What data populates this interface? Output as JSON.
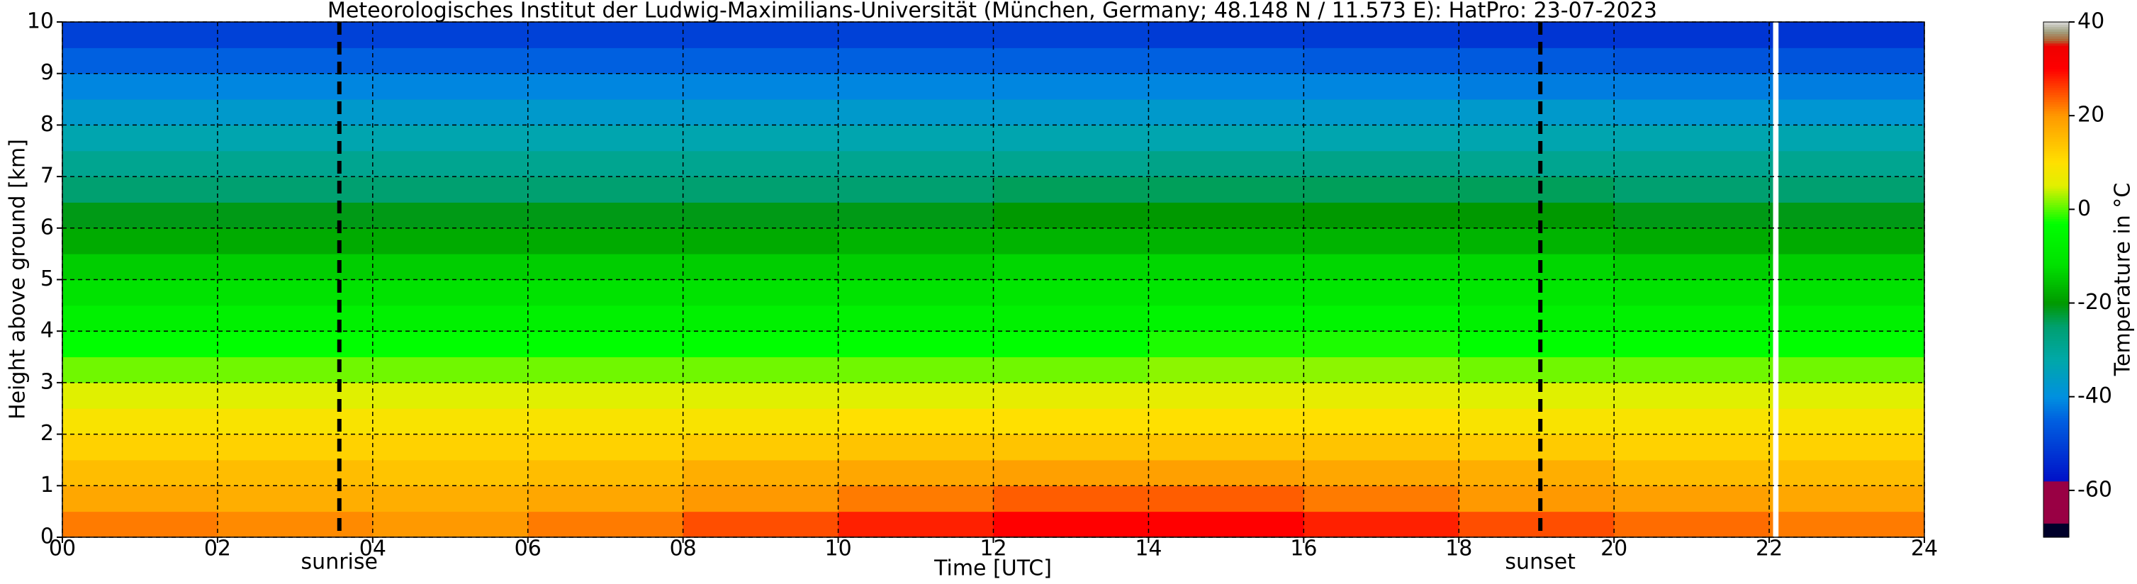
{
  "chart_data": {
    "type": "heatmap",
    "title": "Meteorologisches Institut der Ludwig-Maximilians-Universität (München, Germany; 48.148 N / 11.573 E):    HatPro: 23-07-2023",
    "x_label": "Time [UTC]",
    "y_label": "Height above ground [km]",
    "colorbar_label": "Temperature in °C",
    "x_bins": [
      0,
      2,
      4,
      6,
      8,
      10,
      12,
      14,
      16,
      18,
      20,
      22,
      24
    ],
    "y_bins": [
      0,
      0.5,
      1,
      1.5,
      2,
      2.5,
      3,
      3.5,
      4,
      4.5,
      5,
      5.5,
      6,
      6.5,
      7,
      7.5,
      8,
      8.5,
      9,
      9.5,
      10
    ],
    "z": [
      [
        22,
        21,
        20,
        22,
        25,
        28,
        30,
        30,
        28,
        25,
        23,
        22
      ],
      [
        18,
        17,
        17,
        18,
        20,
        22,
        24,
        24,
        22,
        20,
        19,
        18
      ],
      [
        15,
        15,
        14,
        15,
        17,
        18,
        19,
        19,
        18,
        17,
        15,
        15
      ],
      [
        12,
        12,
        12,
        12,
        13,
        14,
        14,
        14,
        14,
        13,
        12,
        12
      ],
      [
        9,
        9,
        9,
        9,
        9,
        10,
        10,
        10,
        10,
        9,
        9,
        9
      ],
      [
        5,
        5,
        5,
        5,
        5,
        5,
        6,
        6,
        6,
        5,
        5,
        5
      ],
      [
        1,
        1,
        1,
        1,
        1,
        1,
        1,
        2,
        2,
        1,
        1,
        1
      ],
      [
        -3,
        -3,
        -3,
        -3,
        -3,
        -3,
        -3,
        -2,
        -2,
        -3,
        -3,
        -3
      ],
      [
        -7,
        -7,
        -7,
        -7,
        -7,
        -7,
        -7,
        -6,
        -6,
        -7,
        -7,
        -7
      ],
      [
        -11,
        -11,
        -11,
        -11,
        -11,
        -11,
        -10,
        -10,
        -10,
        -10,
        -11,
        -11
      ],
      [
        -14,
        -14,
        -14,
        -14,
        -14,
        -14,
        -13,
        -13,
        -13,
        -13,
        -14,
        -14
      ],
      [
        -18,
        -18,
        -18,
        -18,
        -18,
        -17,
        -17,
        -17,
        -17,
        -17,
        -18,
        -18
      ],
      [
        -21,
        -21,
        -21,
        -21,
        -21,
        -21,
        -20,
        -20,
        -20,
        -20,
        -21,
        -21
      ],
      [
        -25,
        -25,
        -25,
        -25,
        -25,
        -25,
        -24,
        -24,
        -24,
        -24,
        -25,
        -25
      ],
      [
        -29,
        -29,
        -29,
        -29,
        -29,
        -29,
        -29,
        -28,
        -28,
        -29,
        -29,
        -29
      ],
      [
        -33,
        -33,
        -33,
        -33,
        -33,
        -33,
        -33,
        -33,
        -33,
        -33,
        -33,
        -33
      ],
      [
        -37,
        -37,
        -37,
        -37,
        -37,
        -37,
        -37,
        -37,
        -37,
        -37,
        -38,
        -38
      ],
      [
        -41,
        -41,
        -41,
        -41,
        -41,
        -41,
        -41,
        -41,
        -41,
        -42,
        -42,
        -42
      ],
      [
        -45,
        -45,
        -45,
        -45,
        -45,
        -45,
        -45,
        -45,
        -46,
        -46,
        -47,
        -47
      ],
      [
        -50,
        -50,
        -50,
        -50,
        -50,
        -50,
        -50,
        -51,
        -51,
        -52,
        -52,
        -52
      ]
    ],
    "xlim": [
      0,
      24
    ],
    "ylim": [
      0,
      10
    ],
    "clim": [
      -70,
      40
    ],
    "xticks": [
      {
        "value": 0,
        "label": "00"
      },
      {
        "value": 2,
        "label": "02"
      },
      {
        "value": 4,
        "label": "04"
      },
      {
        "value": 6,
        "label": "06"
      },
      {
        "value": 8,
        "label": "08"
      },
      10,
      12,
      14,
      16,
      18,
      20,
      22,
      24
    ],
    "yticks": [
      0,
      1,
      2,
      3,
      4,
      5,
      6,
      7,
      8,
      9,
      10
    ],
    "cticks": [
      -60,
      -40,
      -20,
      0,
      20,
      40
    ],
    "grid": true,
    "colorscale": [
      [
        -70,
        "#00002a"
      ],
      [
        -67,
        "#00002a"
      ],
      [
        -67,
        "#990044"
      ],
      [
        -58,
        "#990044"
      ],
      [
        -58,
        "#0010c8"
      ],
      [
        -45,
        "#0060e0"
      ],
      [
        -40,
        "#0090e0"
      ],
      [
        -32,
        "#00a8a8"
      ],
      [
        -25,
        "#00a070"
      ],
      [
        -20,
        "#009900"
      ],
      [
        -12,
        "#00e000"
      ],
      [
        -3,
        "#00ff00"
      ],
      [
        5,
        "#e0f000"
      ],
      [
        10,
        "#ffe000"
      ],
      [
        20,
        "#ff9900"
      ],
      [
        27,
        "#ff3000"
      ],
      [
        30,
        "#ff0000"
      ],
      [
        35,
        "#ee0000"
      ],
      [
        36,
        "#b06030"
      ],
      [
        38,
        "#a0a080"
      ],
      [
        40,
        "#d8d8d8"
      ]
    ],
    "data_gap": [
      22.05,
      22.12
    ],
    "vlines": [
      {
        "x": 3.57,
        "label": "sunrise"
      },
      {
        "x": 19.05,
        "label": "sunset"
      }
    ]
  }
}
